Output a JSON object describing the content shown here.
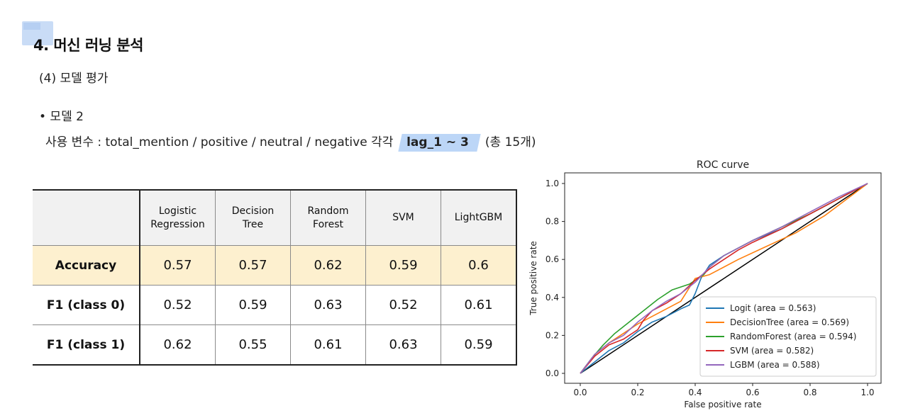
{
  "section": {
    "title": "4. 머신 러닝 분석",
    "subtitle": "(4) 모델 평가",
    "bullet": "• 모델 2",
    "vars_prefix": "사용 변수 : total_mention  / positive / neutral  / negative 각각",
    "vars_highlight": "lag_1 ~ 3",
    "vars_suffix": "(총 15개)"
  },
  "table": {
    "headers": [
      {
        "line1": "Logistic",
        "line2": "Regression"
      },
      {
        "line1": "Decision",
        "line2": "Tree"
      },
      {
        "line1": "Random",
        "line2": "Forest"
      },
      {
        "line1": "SVM",
        "line2": ""
      },
      {
        "line1": "LightGBM",
        "line2": ""
      }
    ],
    "rows": [
      {
        "label": "Accuracy",
        "values": [
          "0.57",
          "0.57",
          "0.62",
          "0.59",
          "0.6"
        ]
      },
      {
        "label": "F1 (class 0)",
        "values": [
          "0.52",
          "0.59",
          "0.63",
          "0.52",
          "0.61"
        ]
      },
      {
        "label": "F1 (class 1)",
        "values": [
          "0.62",
          "0.55",
          "0.61",
          "0.63",
          "0.59"
        ]
      }
    ]
  },
  "chart_data": {
    "type": "line",
    "title": "ROC curve",
    "xlabel": "False positive rate",
    "ylabel": "True positive rate",
    "xlim": [
      0,
      1
    ],
    "ylim": [
      0,
      1
    ],
    "xticks": [
      "0.0",
      "0.2",
      "0.4",
      "0.6",
      "0.8",
      "1.0"
    ],
    "yticks": [
      "0.0",
      "0.2",
      "0.4",
      "0.6",
      "0.8",
      "1.0"
    ],
    "legend_position": "bottom-right",
    "series": [
      {
        "name": "Logit (area = 0.563)",
        "color": "#1f77b4",
        "x": [
          0,
          0.05,
          0.1,
          0.15,
          0.2,
          0.25,
          0.3,
          0.35,
          0.38,
          0.4,
          0.42,
          0.45,
          0.5,
          0.55,
          0.6,
          0.7,
          0.8,
          0.9,
          1.0
        ],
        "y": [
          0,
          0.06,
          0.12,
          0.16,
          0.22,
          0.27,
          0.3,
          0.34,
          0.36,
          0.42,
          0.5,
          0.57,
          0.62,
          0.66,
          0.7,
          0.76,
          0.84,
          0.92,
          1.0
        ]
      },
      {
        "name": "DecisionTree (area = 0.569)",
        "color": "#ff7f0e",
        "x": [
          0,
          0.05,
          0.1,
          0.2,
          0.3,
          0.35,
          0.4,
          0.45,
          0.55,
          0.65,
          0.75,
          0.85,
          1.0
        ],
        "y": [
          0,
          0.1,
          0.16,
          0.26,
          0.34,
          0.38,
          0.5,
          0.52,
          0.6,
          0.67,
          0.74,
          0.83,
          1.0
        ]
      },
      {
        "name": "RandomForest (area = 0.594)",
        "color": "#2ca02c",
        "x": [
          0,
          0.04,
          0.08,
          0.12,
          0.17,
          0.22,
          0.27,
          0.32,
          0.38,
          0.43,
          0.45,
          0.5,
          0.55,
          0.6,
          0.7,
          0.8,
          0.9,
          1.0
        ],
        "y": [
          0,
          0.08,
          0.15,
          0.21,
          0.27,
          0.33,
          0.39,
          0.44,
          0.47,
          0.52,
          0.56,
          0.62,
          0.66,
          0.7,
          0.77,
          0.84,
          0.92,
          1.0
        ]
      },
      {
        "name": "SVM (area = 0.582)",
        "color": "#d62728",
        "x": [
          0,
          0.05,
          0.1,
          0.15,
          0.2,
          0.22,
          0.25,
          0.3,
          0.35,
          0.4,
          0.45,
          0.5,
          0.55,
          0.6,
          0.7,
          0.8,
          0.9,
          1.0
        ],
        "y": [
          0,
          0.09,
          0.15,
          0.18,
          0.23,
          0.28,
          0.33,
          0.37,
          0.42,
          0.49,
          0.55,
          0.6,
          0.65,
          0.69,
          0.76,
          0.84,
          0.92,
          1.0
        ]
      },
      {
        "name": "LGBM (area = 0.588)",
        "color": "#9467bd",
        "x": [
          0,
          0.05,
          0.1,
          0.15,
          0.2,
          0.25,
          0.3,
          0.35,
          0.4,
          0.45,
          0.5,
          0.55,
          0.6,
          0.7,
          0.8,
          0.9,
          1.0
        ],
        "y": [
          0,
          0.1,
          0.16,
          0.2,
          0.27,
          0.33,
          0.38,
          0.42,
          0.48,
          0.56,
          0.62,
          0.66,
          0.7,
          0.77,
          0.85,
          0.93,
          1.0
        ]
      }
    ],
    "diagonal_color": "#000000"
  }
}
